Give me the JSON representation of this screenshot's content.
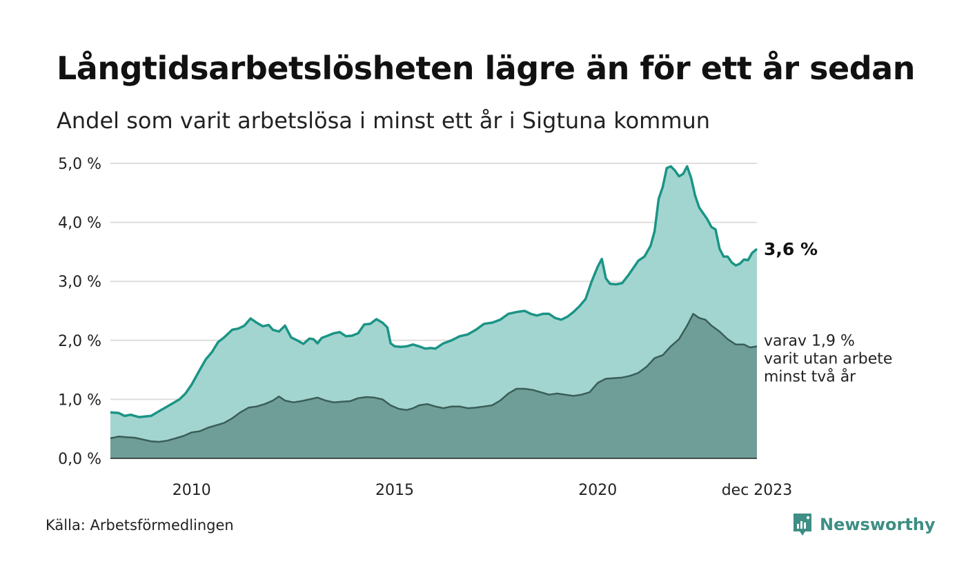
{
  "header": {
    "title": "Långtidsarbetslösheten lägre än för ett år sedan",
    "subtitle": "Andel som varit arbetslösa i minst ett år i Sigtuna kommun"
  },
  "footer": {
    "source": "Källa: Arbetsförmedlingen",
    "brand": "Newsworthy"
  },
  "colors": {
    "main_line": "#1a9485",
    "main_fill": "#a3d5d0",
    "sub_line": "#3a5d58",
    "sub_fill": "#6f9e98",
    "grid": "#dddddd"
  },
  "chart_data": {
    "type": "area",
    "title": "Andel som varit arbetslösa i minst ett år i Sigtuna kommun",
    "unit": "%",
    "ylim": [
      0,
      5
    ],
    "yticks": [
      "0,0 %",
      "1,0 %",
      "2,0 %",
      "3,0 %",
      "4,0 %",
      "5,0 %"
    ],
    "xticks": [
      {
        "label": "2010",
        "x": 2010.0
      },
      {
        "label": "2015",
        "x": 2015.0
      },
      {
        "label": "2020",
        "x": 2020.0
      },
      {
        "label": "dec 2023",
        "x": 2023.92
      }
    ],
    "x_range": [
      2008.0,
      2023.92
    ],
    "grid": true,
    "end_labels": {
      "main": "3,6 %",
      "sub_lines": [
        "varav 1,9 %",
        "varit utan arbete",
        "minst två år"
      ]
    },
    "series": [
      {
        "name": "Arbetslösa minst ett år",
        "points": [
          [
            2008.0,
            0.78
          ],
          [
            2008.2,
            0.77
          ],
          [
            2008.35,
            0.72
          ],
          [
            2008.5,
            0.74
          ],
          [
            2008.7,
            0.7
          ],
          [
            2008.85,
            0.71
          ],
          [
            2009.0,
            0.72
          ],
          [
            2009.2,
            0.8
          ],
          [
            2009.35,
            0.86
          ],
          [
            2009.5,
            0.92
          ],
          [
            2009.7,
            1.0
          ],
          [
            2009.85,
            1.1
          ],
          [
            2010.0,
            1.25
          ],
          [
            2010.2,
            1.5
          ],
          [
            2010.35,
            1.68
          ],
          [
            2010.5,
            1.8
          ],
          [
            2010.65,
            1.97
          ],
          [
            2010.8,
            2.05
          ],
          [
            2011.0,
            2.18
          ],
          [
            2011.15,
            2.2
          ],
          [
            2011.3,
            2.25
          ],
          [
            2011.45,
            2.37
          ],
          [
            2011.6,
            2.3
          ],
          [
            2011.75,
            2.24
          ],
          [
            2011.9,
            2.26
          ],
          [
            2012.0,
            2.18
          ],
          [
            2012.15,
            2.15
          ],
          [
            2012.3,
            2.25
          ],
          [
            2012.45,
            2.05
          ],
          [
            2012.6,
            2.0
          ],
          [
            2012.75,
            1.94
          ],
          [
            2012.9,
            2.03
          ],
          [
            2013.0,
            2.02
          ],
          [
            2013.1,
            1.95
          ],
          [
            2013.2,
            2.04
          ],
          [
            2013.35,
            2.08
          ],
          [
            2013.5,
            2.12
          ],
          [
            2013.65,
            2.14
          ],
          [
            2013.8,
            2.07
          ],
          [
            2013.95,
            2.08
          ],
          [
            2014.1,
            2.12
          ],
          [
            2014.25,
            2.27
          ],
          [
            2014.4,
            2.28
          ],
          [
            2014.55,
            2.36
          ],
          [
            2014.7,
            2.3
          ],
          [
            2014.82,
            2.22
          ],
          [
            2014.9,
            1.95
          ],
          [
            2015.0,
            1.9
          ],
          [
            2015.15,
            1.89
          ],
          [
            2015.3,
            1.9
          ],
          [
            2015.45,
            1.93
          ],
          [
            2015.6,
            1.9
          ],
          [
            2015.75,
            1.86
          ],
          [
            2015.9,
            1.87
          ],
          [
            2016.0,
            1.86
          ],
          [
            2016.2,
            1.95
          ],
          [
            2016.4,
            2.0
          ],
          [
            2016.6,
            2.07
          ],
          [
            2016.8,
            2.1
          ],
          [
            2017.0,
            2.18
          ],
          [
            2017.2,
            2.28
          ],
          [
            2017.4,
            2.3
          ],
          [
            2017.6,
            2.35
          ],
          [
            2017.8,
            2.45
          ],
          [
            2018.0,
            2.48
          ],
          [
            2018.2,
            2.5
          ],
          [
            2018.35,
            2.45
          ],
          [
            2018.5,
            2.42
          ],
          [
            2018.65,
            2.45
          ],
          [
            2018.8,
            2.45
          ],
          [
            2018.95,
            2.38
          ],
          [
            2019.1,
            2.35
          ],
          [
            2019.25,
            2.4
          ],
          [
            2019.4,
            2.48
          ],
          [
            2019.55,
            2.58
          ],
          [
            2019.7,
            2.7
          ],
          [
            2019.85,
            3.0
          ],
          [
            2020.0,
            3.25
          ],
          [
            2020.1,
            3.38
          ],
          [
            2020.2,
            3.05
          ],
          [
            2020.3,
            2.96
          ],
          [
            2020.45,
            2.95
          ],
          [
            2020.6,
            2.97
          ],
          [
            2020.75,
            3.1
          ],
          [
            2020.9,
            3.25
          ],
          [
            2021.0,
            3.35
          ],
          [
            2021.15,
            3.42
          ],
          [
            2021.3,
            3.6
          ],
          [
            2021.4,
            3.85
          ],
          [
            2021.5,
            4.4
          ],
          [
            2021.6,
            4.6
          ],
          [
            2021.7,
            4.92
          ],
          [
            2021.8,
            4.95
          ],
          [
            2021.9,
            4.88
          ],
          [
            2022.0,
            4.78
          ],
          [
            2022.1,
            4.82
          ],
          [
            2022.2,
            4.95
          ],
          [
            2022.3,
            4.75
          ],
          [
            2022.4,
            4.45
          ],
          [
            2022.5,
            4.25
          ],
          [
            2022.6,
            4.15
          ],
          [
            2022.7,
            4.05
          ],
          [
            2022.8,
            3.92
          ],
          [
            2022.9,
            3.88
          ],
          [
            2023.0,
            3.55
          ],
          [
            2023.1,
            3.42
          ],
          [
            2023.2,
            3.42
          ],
          [
            2023.3,
            3.32
          ],
          [
            2023.4,
            3.27
          ],
          [
            2023.5,
            3.3
          ],
          [
            2023.6,
            3.37
          ],
          [
            2023.7,
            3.36
          ],
          [
            2023.8,
            3.48
          ],
          [
            2023.92,
            3.55
          ]
        ]
      },
      {
        "name": "varav utan arbete minst två år",
        "points": [
          [
            2008.0,
            0.34
          ],
          [
            2008.2,
            0.37
          ],
          [
            2008.4,
            0.36
          ],
          [
            2008.6,
            0.35
          ],
          [
            2008.8,
            0.32
          ],
          [
            2009.0,
            0.29
          ],
          [
            2009.2,
            0.28
          ],
          [
            2009.4,
            0.3
          ],
          [
            2009.6,
            0.34
          ],
          [
            2009.8,
            0.38
          ],
          [
            2010.0,
            0.44
          ],
          [
            2010.2,
            0.46
          ],
          [
            2010.4,
            0.52
          ],
          [
            2010.6,
            0.56
          ],
          [
            2010.8,
            0.6
          ],
          [
            2011.0,
            0.68
          ],
          [
            2011.2,
            0.78
          ],
          [
            2011.4,
            0.86
          ],
          [
            2011.6,
            0.88
          ],
          [
            2011.8,
            0.92
          ],
          [
            2012.0,
            0.98
          ],
          [
            2012.15,
            1.05
          ],
          [
            2012.3,
            0.98
          ],
          [
            2012.5,
            0.95
          ],
          [
            2012.7,
            0.97
          ],
          [
            2012.9,
            1.0
          ],
          [
            2013.1,
            1.03
          ],
          [
            2013.3,
            0.98
          ],
          [
            2013.5,
            0.95
          ],
          [
            2013.7,
            0.96
          ],
          [
            2013.9,
            0.97
          ],
          [
            2014.1,
            1.02
          ],
          [
            2014.3,
            1.04
          ],
          [
            2014.5,
            1.03
          ],
          [
            2014.7,
            1.0
          ],
          [
            2014.9,
            0.9
          ],
          [
            2015.1,
            0.84
          ],
          [
            2015.3,
            0.82
          ],
          [
            2015.45,
            0.85
          ],
          [
            2015.6,
            0.9
          ],
          [
            2015.8,
            0.92
          ],
          [
            2016.0,
            0.88
          ],
          [
            2016.2,
            0.85
          ],
          [
            2016.4,
            0.88
          ],
          [
            2016.6,
            0.88
          ],
          [
            2016.8,
            0.85
          ],
          [
            2017.0,
            0.86
          ],
          [
            2017.2,
            0.88
          ],
          [
            2017.4,
            0.9
          ],
          [
            2017.6,
            0.98
          ],
          [
            2017.8,
            1.1
          ],
          [
            2018.0,
            1.18
          ],
          [
            2018.2,
            1.18
          ],
          [
            2018.4,
            1.16
          ],
          [
            2018.6,
            1.12
          ],
          [
            2018.8,
            1.08
          ],
          [
            2019.0,
            1.1
          ],
          [
            2019.2,
            1.08
          ],
          [
            2019.4,
            1.06
          ],
          [
            2019.6,
            1.08
          ],
          [
            2019.8,
            1.12
          ],
          [
            2020.0,
            1.28
          ],
          [
            2020.2,
            1.35
          ],
          [
            2020.4,
            1.36
          ],
          [
            2020.6,
            1.37
          ],
          [
            2020.8,
            1.4
          ],
          [
            2021.0,
            1.45
          ],
          [
            2021.2,
            1.55
          ],
          [
            2021.4,
            1.7
          ],
          [
            2021.6,
            1.75
          ],
          [
            2021.8,
            1.9
          ],
          [
            2022.0,
            2.02
          ],
          [
            2022.2,
            2.25
          ],
          [
            2022.35,
            2.45
          ],
          [
            2022.5,
            2.38
          ],
          [
            2022.65,
            2.35
          ],
          [
            2022.8,
            2.25
          ],
          [
            2023.0,
            2.15
          ],
          [
            2023.2,
            2.02
          ],
          [
            2023.4,
            1.93
          ],
          [
            2023.6,
            1.93
          ],
          [
            2023.75,
            1.88
          ],
          [
            2023.92,
            1.9
          ]
        ]
      }
    ]
  }
}
